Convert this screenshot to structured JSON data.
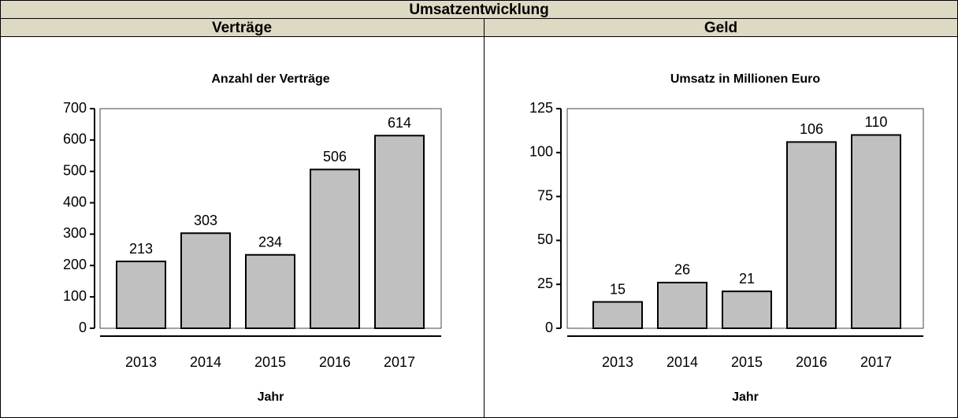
{
  "table": {
    "title": "Umsatzentwicklung",
    "headers": [
      "Verträge",
      "Geld"
    ]
  },
  "chart_data": [
    {
      "type": "bar",
      "title": "Anzahl der Verträge",
      "xlabel": "Jahr",
      "categories": [
        "2013",
        "2014",
        "2015",
        "2016",
        "2017"
      ],
      "values": [
        213,
        303,
        234,
        506,
        614
      ],
      "color": "#c0c0c0",
      "ylim": [
        0,
        700
      ],
      "yticks": [
        0,
        100,
        200,
        300,
        400,
        500,
        600,
        700
      ]
    },
    {
      "type": "bar",
      "title": "Umsatz in Millionen Euro",
      "xlabel": "Jahr",
      "categories": [
        "2013",
        "2014",
        "2015",
        "2016",
        "2017"
      ],
      "values": [
        15,
        26,
        21,
        106,
        110
      ],
      "color": "#c0c0c0",
      "ylim": [
        0,
        125
      ],
      "yticks": [
        0,
        25,
        50,
        75,
        100,
        125
      ]
    }
  ]
}
